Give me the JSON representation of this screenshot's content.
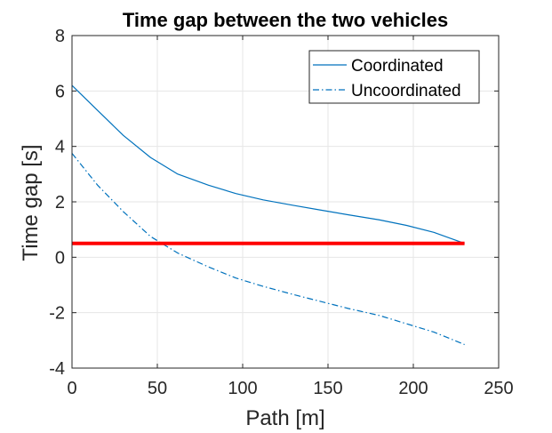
{
  "chart_data": {
    "type": "line",
    "title": "Time gap between the two vehicles",
    "xlabel": "Path [m]",
    "ylabel": "Time gap [s]",
    "xlim": [
      0,
      250
    ],
    "ylim": [
      -4,
      8
    ],
    "xticks": [
      0,
      50,
      100,
      150,
      200,
      250
    ],
    "yticks": [
      -4,
      -2,
      0,
      2,
      4,
      6,
      8
    ],
    "grid": true,
    "legend_position": "top-right",
    "series": [
      {
        "name": "Coordinated",
        "style": "solid",
        "color": "#0072BD",
        "x": [
          0,
          15,
          30,
          46,
          62,
          80,
          96,
          112,
          130,
          146,
          162,
          180,
          196,
          212,
          230
        ],
        "y": [
          6.2,
          5.3,
          4.4,
          3.6,
          3.0,
          2.6,
          2.3,
          2.07,
          1.87,
          1.7,
          1.53,
          1.35,
          1.15,
          0.9,
          0.5
        ]
      },
      {
        "name": "Uncoordinated",
        "style": "dashdot",
        "color": "#0072BD",
        "x": [
          0,
          15,
          30,
          46,
          62,
          80,
          96,
          112,
          130,
          146,
          162,
          180,
          196,
          212,
          230
        ],
        "y": [
          3.75,
          2.6,
          1.65,
          0.75,
          0.15,
          -0.35,
          -0.75,
          -1.05,
          -1.35,
          -1.6,
          -1.85,
          -2.1,
          -2.4,
          -2.7,
          -3.15
        ]
      },
      {
        "style": "solid-thick",
        "color": "#FF0000",
        "x": [
          0,
          230
        ],
        "y": [
          0.5,
          0.5
        ]
      }
    ]
  }
}
